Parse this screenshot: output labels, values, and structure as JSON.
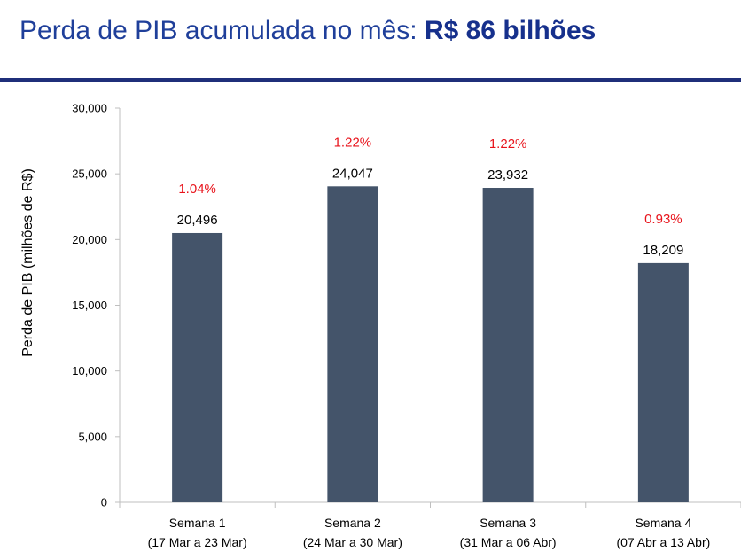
{
  "header": {
    "title_prefix": "Perda de PIB acumulada no mês: ",
    "title_bold": "R$ 86 bilhões"
  },
  "colors": {
    "bar": "#44546a",
    "percent": "#e8131b",
    "title": "#1f3f9a",
    "rule": "#1f2f7a"
  },
  "chart_data": {
    "type": "bar",
    "categories": [
      [
        "Semana 1",
        "(17 Mar a 23 Mar)"
      ],
      [
        "Semana 2",
        "(24 Mar a 30 Mar)"
      ],
      [
        "Semana 3",
        "(31 Mar a 06 Abr)"
      ],
      [
        "Semana 4",
        "(07 Abr a 13 Abr)"
      ]
    ],
    "values": [
      20496,
      24047,
      23932,
      18209
    ],
    "value_labels": [
      "20,496",
      "24,047",
      "23,932",
      "18,209"
    ],
    "percent_labels": [
      "1.04%",
      "1.22%",
      "1.22%",
      "0.93%"
    ],
    "ylabel": "Perda de PIB (milhões de R$)",
    "ylim": [
      0,
      30000
    ],
    "yticks": [
      0,
      5000,
      10000,
      15000,
      20000,
      25000,
      30000
    ],
    "ytick_labels": [
      "0",
      "5,000",
      "10,000",
      "15,000",
      "20,000",
      "25,000",
      "30,000"
    ],
    "grid": false,
    "legend": "none"
  }
}
